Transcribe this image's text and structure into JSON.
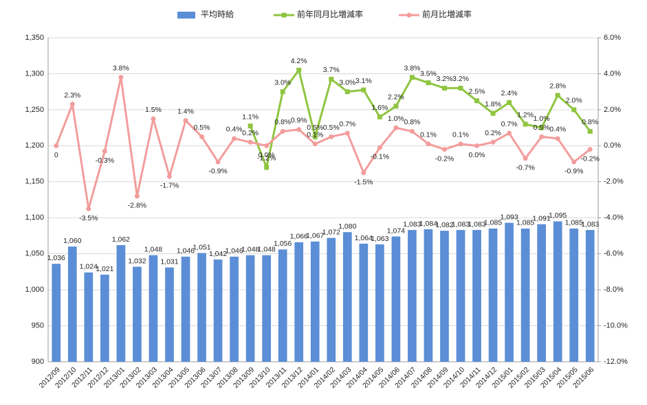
{
  "chart_data": {
    "type": "bar_line",
    "categories": [
      "2012/09",
      "2012/10",
      "2012/11",
      "2012/12",
      "2013/01",
      "2013/02",
      "2013/03",
      "2013/04",
      "2013/05",
      "2013/06",
      "2013/07",
      "2013/08",
      "2013/09",
      "2013/10",
      "2013/11",
      "2013/12",
      "2014/01",
      "2014/02",
      "2014/03",
      "2014/04",
      "2014/05",
      "2014/06",
      "2014/07",
      "2014/08",
      "2014/09",
      "2014/10",
      "2014/11",
      "2014/12",
      "2015/01",
      "2015/02",
      "2015/03",
      "2015/04",
      "2015/05",
      "2015/06"
    ],
    "series": [
      {
        "name": "平均時給",
        "type": "bar",
        "color": "#5b8ed6",
        "values": [
          1036,
          1060,
          1024,
          1021,
          1062,
          1032,
          1048,
          1031,
          1046,
          1051,
          1042,
          1046,
          1048,
          1048,
          1056,
          1066,
          1067,
          1072,
          1080,
          1064,
          1063,
          1074,
          1083,
          1084,
          1082,
          1083,
          1083,
          1085,
          1093,
          1085,
          1091,
          1095,
          1085,
          1083
        ],
        "value_labels": [
          "1,036",
          "1,060",
          "1,024",
          "1,021",
          "1,062",
          "1,032",
          "1,048",
          "1,031",
          "1,046",
          "1,051",
          "1,042",
          "1,046",
          "1,048",
          "1,048",
          "1,056",
          "1,066",
          "1,067",
          "1,072",
          "1,080",
          "1,064",
          "1,063",
          "1,074",
          "1,083",
          "1,084",
          "1,082",
          "1,083",
          "1,083",
          "1,085",
          "1,093",
          "1,085",
          "1,091",
          "1,095",
          "1,085",
          "1,083"
        ]
      },
      {
        "name": "前年同月比増減率",
        "type": "line",
        "axis": "y2",
        "color": "#8fc540",
        "marker": "square",
        "values": [
          null,
          null,
          null,
          null,
          null,
          null,
          null,
          null,
          null,
          null,
          null,
          null,
          1.1,
          -1.2,
          3.0,
          4.2,
          0.5,
          3.7,
          3.0,
          3.1,
          1.6,
          2.2,
          3.8,
          3.5,
          3.2,
          3.2,
          2.5,
          1.8,
          2.4,
          1.2,
          1.0,
          2.8,
          2.0,
          0.8
        ],
        "value_labels": [
          null,
          null,
          null,
          null,
          null,
          null,
          null,
          null,
          null,
          null,
          null,
          null,
          "1.1%",
          "-1.2%",
          "3.0%",
          "4.2%",
          "0.5%",
          "3.7%",
          "3.0%",
          "3.1%",
          "1.6%",
          "2.2%",
          "3.8%",
          "3.5%",
          "3.2%",
          "3.2%",
          "2.5%",
          "1.8%",
          "2.4%",
          "1.2%",
          "1.0%",
          "2.8%",
          "2.0%",
          "0.8%"
        ]
      },
      {
        "name": "前月比増減率",
        "type": "line",
        "axis": "y2",
        "color": "#f39c9c",
        "marker": "circle",
        "values": [
          0,
          2.3,
          -3.5,
          -0.3,
          3.8,
          -2.8,
          1.5,
          -1.7,
          1.4,
          0.5,
          -0.9,
          0.4,
          0.2,
          0.0,
          0.8,
          0.9,
          0.1,
          0.5,
          0.7,
          -1.5,
          -0.1,
          1.0,
          0.8,
          0.1,
          -0.2,
          0.1,
          0.0,
          0.2,
          0.7,
          -0.7,
          0.5,
          0.4,
          -0.9,
          -0.2
        ],
        "value_labels": [
          "0",
          "2.3%",
          "-3.5%",
          "-0.3%",
          "3.8%",
          "-2.8%",
          "1.5%",
          "-1.7%",
          "1.4%",
          "0.5%",
          "-0.9%",
          "0.4%",
          "0.2%",
          "0.0%",
          "0.8%",
          "0.9%",
          "0.1%",
          "0.5%",
          "0.7%",
          "-1.5%",
          "-0.1%",
          "1.0%",
          "0.8%",
          "0.1%",
          "-0.2%",
          "0.1%",
          "0.0%",
          "0.2%",
          "0.7%",
          "-0.7%",
          "0.5%",
          "0.4%",
          "-0.9%",
          "-0.2%"
        ]
      }
    ],
    "ylim": [
      900,
      1350
    ],
    "yticks": [
      900,
      950,
      {
        "value": 1000,
        "label": "1,000"
      },
      {
        "value": 1050,
        "label": "1,050"
      },
      {
        "value": 1100,
        "label": "1,100"
      },
      {
        "value": 1150,
        "label": "1,150"
      },
      {
        "value": 1200,
        "label": "1,200"
      },
      {
        "value": 1250,
        "label": "1,250"
      },
      {
        "value": 1300,
        "label": "1,300"
      },
      {
        "value": 1350,
        "label": "1,350"
      }
    ],
    "y2lim": [
      -12,
      6
    ],
    "y2ticks": [
      {
        "value": -12,
        "label": "-12.0%"
      },
      {
        "value": -10,
        "label": "-10.0%"
      },
      {
        "value": -8,
        "label": "-8.0%"
      },
      {
        "value": -6,
        "label": "-6.0%"
      },
      {
        "value": -4,
        "label": "-4.0%"
      },
      {
        "value": -2,
        "label": "-2.0%"
      },
      {
        "value": 0,
        "label": "0.0%"
      },
      {
        "value": 2,
        "label": "2.0%"
      },
      {
        "value": 4,
        "label": "4.0%"
      },
      {
        "value": 6,
        "label": "6.0%"
      }
    ],
    "grid": true,
    "legend": "top"
  }
}
